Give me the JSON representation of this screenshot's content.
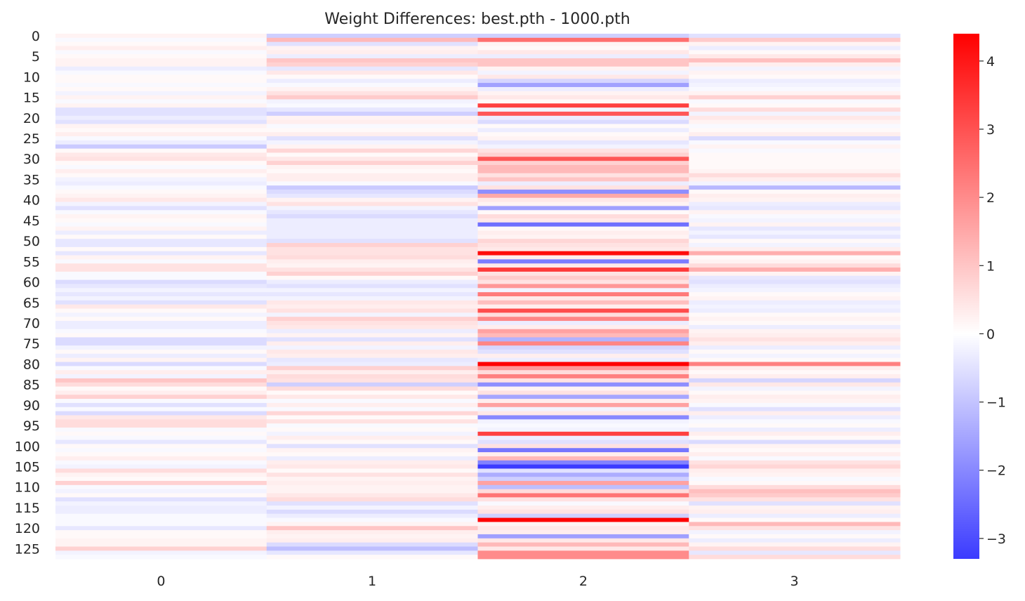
{
  "chart_data": {
    "type": "heatmap",
    "title": "Weight Differences: best.pth - 1000.pth",
    "x_categories": [
      "0",
      "1",
      "2",
      "3"
    ],
    "n_rows": 128,
    "y_tick_labels": [
      "0",
      "5",
      "10",
      "15",
      "20",
      "25",
      "30",
      "35",
      "40",
      "45",
      "50",
      "55",
      "60",
      "65",
      "70",
      "75",
      "80",
      "85",
      "90",
      "95",
      "100",
      "105",
      "110",
      "115",
      "120",
      "125"
    ],
    "y_tick_step": 5,
    "colormap": "bwr-like diverging (blue negative, white zero, red positive)",
    "color_low": "#3b3bff",
    "color_mid": "#ffffff",
    "color_high": "#ff0000",
    "vmin": -3.3,
    "vmax": 4.4,
    "colorbar_ticks": [
      4,
      3,
      2,
      1,
      0,
      -1,
      -2,
      -3
    ],
    "colorbar_tick_labels": [
      "4",
      "3",
      "2",
      "1",
      "0",
      "−1",
      "−2",
      "−3"
    ],
    "grid": false,
    "columns": [
      [
        0.2,
        -0.1,
        0.1,
        0.3,
        -0.1,
        0.1,
        0.2,
        0.2,
        -0.3,
        -0.1,
        0.1,
        0.1,
        -0.1,
        0.1,
        -0.2,
        0.2,
        -0.1,
        0.2,
        -0.5,
        -0.5,
        -0.3,
        -0.5,
        0.2,
        0.1,
        0.3,
        -0.1,
        -0.3,
        -0.9,
        0.1,
        0.4,
        0.5,
        0.1,
        -0.1,
        0.3,
        0.1,
        -0.2,
        -0.3,
        -0.1,
        0.1,
        0.2,
        0.4,
        -0.2,
        -0.5,
        -0.1,
        0.2,
        0.1,
        -0.1,
        0.2,
        -0.3,
        0.1,
        -0.4,
        -0.4,
        0.1,
        -0.4,
        0.2,
        -0.1,
        0.5,
        0.5,
        -0.1,
        -0.1,
        -0.6,
        -0.4,
        -0.2,
        -0.4,
        -0.2,
        -0.5,
        0.4,
        0.1,
        -0.2,
        0.1,
        -0.3,
        -0.3,
        -0.1,
        0.1,
        -0.6,
        -0.6,
        -0.2,
        0.1,
        -0.3,
        0.2,
        -0.6,
        -0.1,
        0.3,
        -0.2,
        1.0,
        0.6,
        0.1,
        0.3,
        0.8,
        -0.1,
        -0.5,
        -0.1,
        -0.6,
        0.4,
        0.6,
        0.6,
        -0.1,
        0.1,
        -0.1,
        -0.4,
        0.1,
        -0.1,
        0.1,
        0.3,
        -0.1,
        -0.2,
        0.6,
        0.2,
        0.1,
        0.8,
        -0.1,
        -0.2,
        0.1,
        -0.5,
        -0.2,
        -0.3,
        -0.3,
        -0.1,
        -0.1,
        -0.1,
        -0.4,
        0.1,
        0.1,
        0.2,
        0.2,
        0.8,
        -0.2,
        -0.1
      ],
      [
        -0.8,
        1.2,
        -0.5,
        0.2,
        0.3,
        -0.3,
        1.0,
        0.8,
        -0.4,
        0.4,
        0.1,
        -0.3,
        -0.1,
        0.2,
        0.5,
        0.9,
        -0.2,
        -0.1,
        -0.4,
        -0.8,
        0.2,
        0.3,
        -0.1,
        0.1,
        0.3,
        -0.5,
        -0.2,
        0.2,
        0.7,
        0.1,
        0.4,
        0.8,
        0.2,
        0.1,
        0.3,
        0.3,
        -0.1,
        -0.9,
        -0.6,
        -0.4,
        0.2,
        0.5,
        -0.2,
        -0.4,
        -0.6,
        -0.3,
        -0.3,
        -0.3,
        -0.3,
        -0.3,
        -0.5,
        0.8,
        0.5,
        0.5,
        0.6,
        0.3,
        0.2,
        0.5,
        0.8,
        0.1,
        -0.3,
        -0.5,
        -0.2,
        -0.4,
        -0.2,
        0.4,
        0.3,
        0.5,
        -0.2,
        0.8,
        0.5,
        0.4,
        -0.3,
        0.2,
        -0.5,
        0.3,
        -0.2,
        0.4,
        0.3,
        -0.4,
        -0.3,
        0.8,
        0.3,
        0.6,
        0.5,
        -0.8,
        0.6,
        0.1,
        0.4,
        -0.1,
        0.3,
        -0.1,
        0.7,
        0.1,
        0.5,
        -0.1,
        0.1,
        -0.2,
        0.3,
        0.1,
        -0.5,
        0.2,
        0.1,
        -0.3,
        0.3,
        0.4,
        0.1,
        0.5,
        0.2,
        0.3,
        0.2,
        0.2,
        0.4,
        0.6,
        -0.5,
        -0.2,
        -0.6,
        -0.3,
        -0.1,
        0.2,
        1.0,
        0.3,
        0.2,
        0.3,
        -0.6,
        -1.1,
        -0.4,
        0.1
      ],
      [
        -0.8,
        2.5,
        0.2,
        0.1,
        0.4,
        -0.3,
        1.0,
        1.0,
        0.2,
        -0.2,
        0.4,
        -0.7,
        -1.6,
        -0.3,
        0.2,
        0.4,
        0.1,
        3.3,
        -0.2,
        2.9,
        -0.3,
        -0.6,
        0.1,
        -0.3,
        0.1,
        0.2,
        -0.4,
        -0.2,
        0.5,
        0.8,
        2.9,
        0.8,
        1.2,
        1.2,
        0.5,
        1.0,
        -0.3,
        0.5,
        -1.9,
        1.5,
        0.4,
        0.2,
        -1.6,
        0.1,
        0.6,
        0.4,
        -2.4,
        0.1,
        0.3,
        0.2,
        0.7,
        0.5,
        0.4,
        4.2,
        0.3,
        -2.2,
        0.4,
        3.4,
        0.5,
        0.9,
        0.5,
        1.8,
        -0.2,
        2.3,
        0.4,
        1.1,
        0.3,
        3.1,
        0.6,
        2.1,
        -0.3,
        0.3,
        1.6,
        1.2,
        -1.3,
        2.1,
        -0.7,
        -0.5,
        0.3,
        -0.3,
        4.4,
        1.8,
        0.6,
        2.2,
        0.5,
        -1.9,
        0.2,
        0.5,
        -1.5,
        0.3,
        1.6,
        -0.2,
        0.4,
        -2.0,
        -0.2,
        -0.1,
        -0.2,
        3.3,
        -0.3,
        -0.5,
        0.5,
        -2.3,
        0.3,
        1.2,
        -2.1,
        -3.3,
        -0.5,
        -1.4,
        -0.8,
        1.6,
        -1.1,
        0.6,
        2.4,
        0.5,
        -0.1,
        0.3,
        0.5,
        -0.8,
        4.4,
        0.2,
        0.4,
        0.3,
        -1.6,
        0.4,
        1.2,
        0.4,
        2.0,
        2.0
      ],
      [
        -0.5,
        0.9,
        0.2,
        -0.3,
        0.1,
        0.4,
        1.1,
        0.3,
        -0.2,
        0.2,
        0.1,
        -0.3,
        -0.2,
        -0.1,
        0.2,
        0.8,
        -0.1,
        0.1,
        0.6,
        -0.2,
        0.4,
        0.2,
        -0.1,
        0.1,
        0.3,
        -0.6,
        -0.1,
        0.2,
        -0.1,
        0.1,
        0.1,
        0.1,
        0.1,
        0.2,
        0.6,
        0.3,
        -0.2,
        -1.2,
        0.1,
        0.3,
        0.2,
        -0.3,
        -0.4,
        0.2,
        -0.1,
        -0.2,
        0.2,
        -0.4,
        -0.2,
        -0.4,
        0.1,
        -0.2,
        0.3,
        1.4,
        0.1,
        0.2,
        0.6,
        1.4,
        0.2,
        -0.4,
        -0.5,
        -0.3,
        -0.2,
        0.1,
        0.2,
        -0.3,
        -0.2,
        -0.3,
        0.1,
        0.2,
        0.1,
        -0.3,
        0.2,
        0.3,
        0.5,
        0.3,
        -0.3,
        0.1,
        -0.2,
        0.1,
        2.2,
        0.3,
        0.1,
        0.3,
        -0.7,
        0.4,
        -0.2,
        0.1,
        0.3,
        0.2,
        -0.1,
        -0.5,
        0.3,
        -0.3,
        -0.1,
        0.1,
        -0.3,
        0.3,
        0.1,
        -0.6,
        0.2,
        0.1,
        0.3,
        -0.1,
        0.5,
        0.7,
        0.3,
        0.2,
        -0.1,
        0.1,
        0.6,
        1.1,
        0.9,
        0.5,
        -0.5,
        0.2,
        0.3,
        -0.3,
        0.1,
        1.2,
        0.5,
        -0.2,
        0.1,
        -0.3,
        0.2,
        0.6,
        -0.4,
        0.6
      ]
    ]
  }
}
